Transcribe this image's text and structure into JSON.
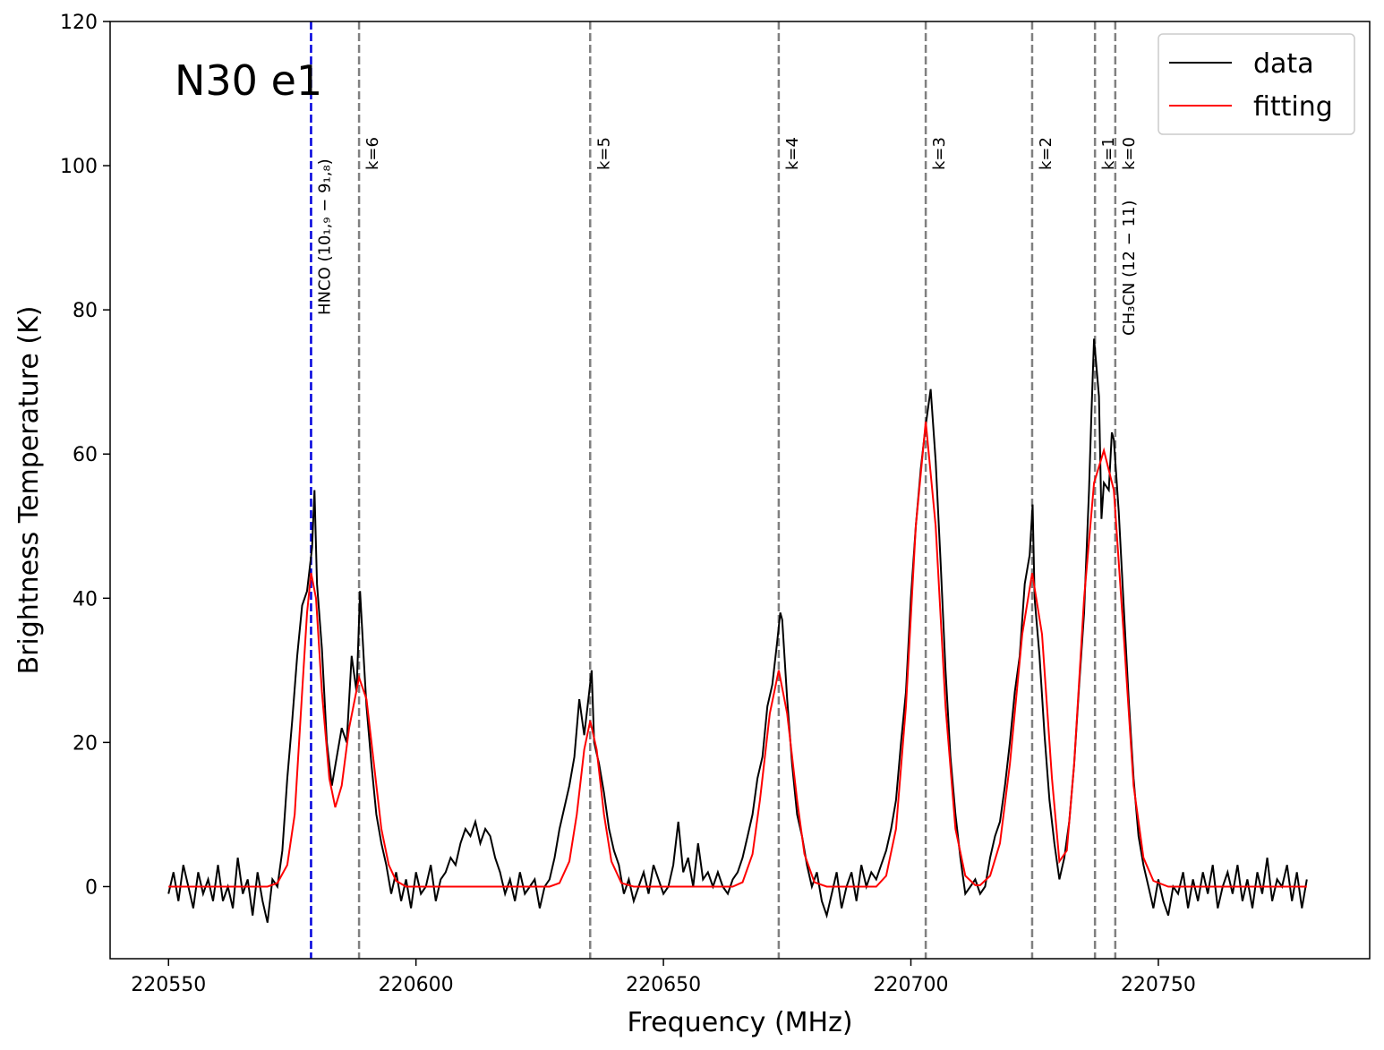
{
  "chart_data": {
    "type": "line",
    "xlabel": "Frequency (MHz)",
    "ylabel": "Brightness Temperature (K)",
    "xlim": [
      220538.2,
      220792.7
    ],
    "ylim": [
      -10,
      120
    ],
    "xticks": [
      220550,
      220600,
      220650,
      220700,
      220750
    ],
    "yticks": [
      0,
      20,
      40,
      60,
      80,
      100,
      120
    ],
    "annotation": "N30 e1",
    "legend_loc": "upper right",
    "series": [
      {
        "name": "data",
        "color": "#000000",
        "x": [
          220550,
          220551,
          220552,
          220553,
          220554,
          220555,
          220556,
          220557,
          220558,
          220559,
          220560,
          220561,
          220562,
          220563,
          220564,
          220565,
          220566,
          220567,
          220568,
          220569,
          220570,
          220571,
          220572,
          220573,
          220574,
          220575,
          220576,
          220577,
          220578,
          220579,
          220579.5,
          220580,
          220581,
          220582,
          220583,
          220584,
          220585,
          220586,
          220587,
          220588,
          220588.7,
          220589.5,
          220590,
          220591,
          220592,
          220593,
          220594,
          220595,
          220596,
          220597,
          220598,
          220599,
          220600,
          220601,
          220602,
          220603,
          220604,
          220605,
          220606,
          220607,
          220608,
          220609,
          220610,
          220611,
          220612,
          220613,
          220614,
          220615,
          220616,
          220617,
          220618,
          220619,
          220620,
          220621,
          220622,
          220623,
          220624,
          220625,
          220626,
          220627,
          220628,
          220629,
          220630,
          220631,
          220632,
          220633,
          220634,
          220635,
          220635.5,
          220636,
          220637,
          220638,
          220639,
          220640,
          220641,
          220642,
          220643,
          220644,
          220645,
          220646,
          220647,
          220648,
          220649,
          220650,
          220651,
          220652,
          220653,
          220654,
          220655,
          220656,
          220657,
          220658,
          220659,
          220660,
          220661,
          220662,
          220663,
          220664,
          220665,
          220666,
          220667,
          220668,
          220669,
          220670,
          220671,
          220672,
          220673,
          220673.6,
          220674,
          220675,
          220676,
          220677,
          220678,
          220679,
          220680,
          220681,
          220682,
          220683,
          220684,
          220685,
          220686,
          220687,
          220688,
          220689,
          220690,
          220691,
          220692,
          220693,
          220694,
          220695,
          220696,
          220697,
          220698,
          220699,
          220700,
          220701,
          220702,
          220703,
          220704,
          220705,
          220706,
          220707,
          220708,
          220709,
          220710,
          220711,
          220712,
          220713,
          220714,
          220715,
          220716,
          220717,
          220718,
          220719,
          220720,
          220721,
          220722,
          220723,
          220724,
          220724.6,
          220725,
          220726,
          220727,
          220728,
          220729,
          220730,
          220731,
          220732,
          220733,
          220734,
          220735,
          220736,
          220736.5,
          220737,
          220738,
          220738.5,
          220739,
          220740,
          220740.6,
          220741,
          220742,
          220743,
          220744,
          220745,
          220746,
          220747,
          220748,
          220749,
          220750,
          220751,
          220752,
          220753,
          220754,
          220755,
          220756,
          220757,
          220758,
          220759,
          220760,
          220761,
          220762,
          220763,
          220764,
          220765,
          220766,
          220767,
          220768,
          220769,
          220770,
          220771,
          220772,
          220773,
          220774,
          220775,
          220776,
          220777,
          220778,
          220779,
          220780
        ],
        "values": [
          -1,
          2,
          -2,
          3,
          0,
          -3,
          2,
          -1,
          1,
          -2,
          3,
          -2,
          0,
          -3,
          4,
          -1,
          1,
          -4,
          2,
          -2,
          -5,
          1,
          0,
          5,
          15,
          23,
          32,
          39,
          41,
          47,
          55,
          42,
          33,
          20,
          14,
          18,
          22,
          20,
          32,
          27,
          41,
          31,
          25,
          17,
          10,
          6,
          3,
          -1,
          2,
          -2,
          1,
          -3,
          2,
          -1,
          0,
          3,
          -2,
          1,
          2,
          4,
          3,
          6,
          8,
          7,
          9,
          6,
          8,
          7,
          4,
          2,
          -1,
          1,
          -2,
          2,
          -1,
          0,
          1,
          -3,
          0,
          1,
          4,
          8,
          11,
          14,
          18,
          26,
          21,
          27,
          30,
          20,
          17,
          13,
          8,
          5,
          3,
          -1,
          1,
          -2,
          0,
          2,
          -1,
          3,
          1,
          -1,
          0,
          3,
          9,
          2,
          4,
          0,
          6,
          1,
          2,
          0,
          2,
          0,
          -1,
          1,
          2,
          4,
          7,
          10,
          15,
          18,
          25,
          28,
          34,
          38,
          37,
          26,
          17,
          10,
          7,
          3,
          0,
          2,
          -2,
          -4,
          -1,
          2,
          -3,
          0,
          2,
          -2,
          3,
          0,
          2,
          1,
          3,
          5,
          8,
          12,
          20,
          27,
          40,
          50,
          58,
          64,
          69,
          59,
          45,
          30,
          18,
          10,
          4,
          -1,
          0,
          1,
          -1,
          0,
          4,
          7,
          9,
          14,
          20,
          27,
          32,
          42,
          46,
          53,
          40,
          32,
          21,
          12,
          6,
          1,
          4,
          9,
          17,
          28,
          38,
          55,
          66,
          76,
          68,
          51,
          56,
          55,
          63,
          62,
          52,
          39,
          26,
          15,
          7,
          3,
          0,
          -3,
          1,
          -2,
          -4,
          0,
          -1,
          2,
          -3,
          1,
          -2,
          2,
          -1,
          3,
          -3,
          0,
          2,
          -1,
          3,
          -2,
          1,
          -3,
          2,
          -1,
          4,
          -2,
          1,
          0,
          3,
          -2,
          2,
          -3,
          1
        ]
      },
      {
        "name": "fitting",
        "color": "#ff0000",
        "x": [
          220550,
          220570,
          220572,
          220574,
          220575.5,
          220577,
          220578,
          220578.8,
          220579.8,
          220581,
          220582.5,
          220583.7,
          220585,
          220586.5,
          220588.5,
          220590,
          220591.5,
          220593,
          220594.5,
          220596,
          220598,
          220627,
          220629,
          220631,
          220632.5,
          220634,
          220635.2,
          220636.5,
          220638,
          220639.5,
          220641.5,
          220644,
          220664,
          220666,
          220668,
          220669.5,
          220671.5,
          220673.3,
          220675,
          220677,
          220678.5,
          220680.5,
          220683,
          220693,
          220695,
          220697,
          220699,
          220701,
          220703,
          220705,
          220707,
          220709,
          220711,
          220713,
          220714,
          220716,
          220718,
          220720,
          220722.5,
          220724.5,
          220726.5,
          220728.5,
          220730,
          220731.5,
          220733,
          220735,
          220737,
          220739,
          220741,
          220743,
          220745,
          220747,
          220749,
          220752,
          220780
        ],
        "values": [
          0,
          0,
          0.5,
          3,
          10,
          27,
          38,
          43.5,
          40,
          27,
          15,
          11,
          14,
          22,
          29,
          26,
          17,
          8,
          3,
          0.8,
          0,
          0,
          0.5,
          3.5,
          10,
          19,
          23,
          19,
          10,
          3.5,
          0.5,
          0,
          0,
          0.6,
          4.5,
          12,
          24,
          30,
          24,
          12,
          4.5,
          0.6,
          0,
          0,
          1.5,
          8,
          25,
          50,
          64.5,
          50,
          25,
          8,
          1.5,
          0.2,
          0.2,
          1.5,
          6,
          17,
          35,
          43.5,
          35,
          15,
          3.5,
          5,
          17,
          40,
          56,
          60.5,
          55,
          35,
          14,
          4,
          0.8,
          0,
          0
        ]
      }
    ],
    "vlines": [
      {
        "x": 220578.8,
        "color": "#0000dd",
        "label": "HNCO (10₁,₉ − 9₁,₈)"
      },
      {
        "x": 220588.5,
        "color": "#808080",
        "label": "k=6"
      },
      {
        "x": 220635.2,
        "color": "#808080",
        "label": "k=5"
      },
      {
        "x": 220673.3,
        "color": "#808080",
        "label": "k=4"
      },
      {
        "x": 220703.0,
        "color": "#808080",
        "label": "k=3"
      },
      {
        "x": 220724.5,
        "color": "#808080",
        "label": "k=2"
      },
      {
        "x": 220737.2,
        "color": "#808080",
        "label": "k=1"
      },
      {
        "x": 220741.3,
        "color": "#808080",
        "label": "k=0"
      }
    ],
    "group_label": "CH₃CN (12 − 11)"
  }
}
